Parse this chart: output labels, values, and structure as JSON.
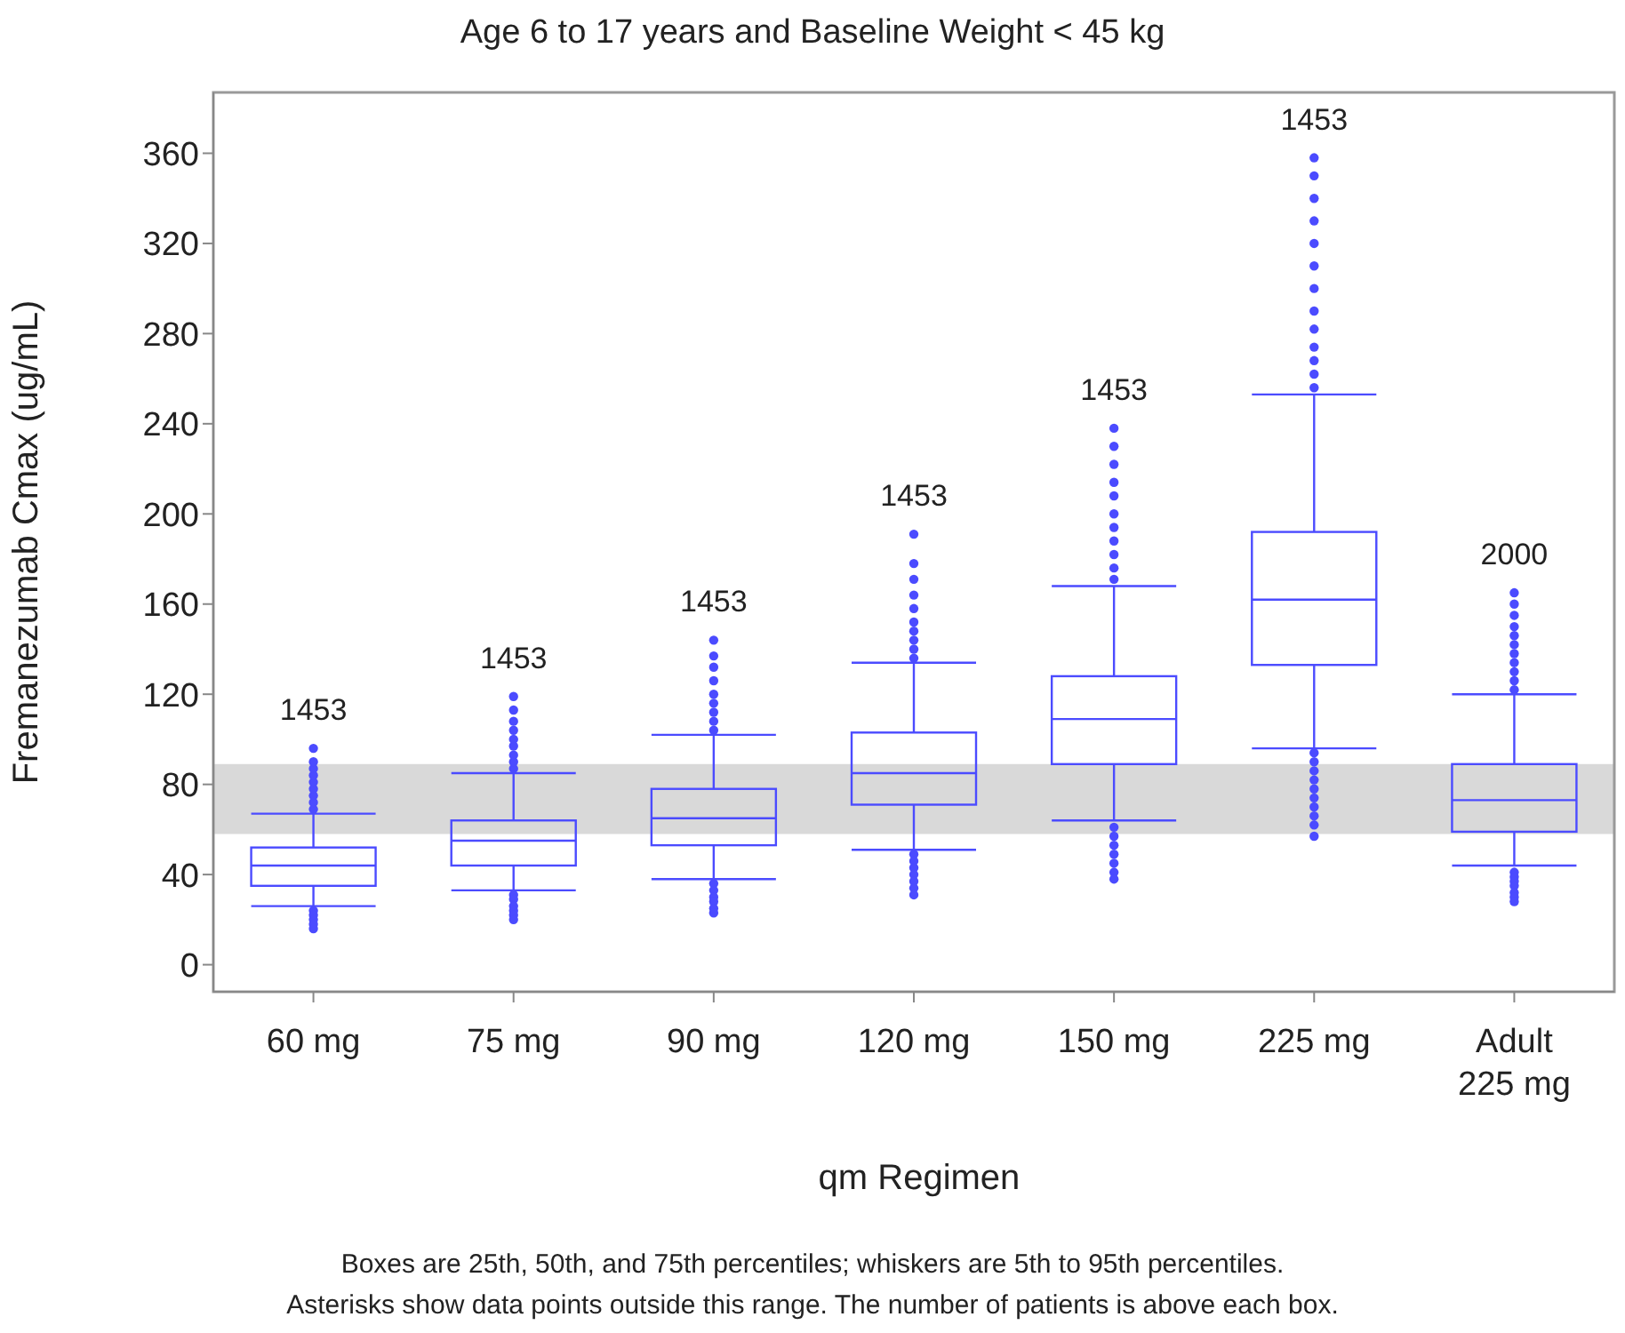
{
  "chart_data": {
    "type": "box",
    "title": "Age 6 to 17 years and Baseline Weight < 45 kg",
    "xlabel": "qm Regimen",
    "ylabel": "Fremanezumab Cmax (ug/mL)",
    "categories": [
      "60 mg",
      "75 mg",
      "90 mg",
      "120 mg",
      "150 mg",
      "225 mg",
      "Adult 225 mg"
    ],
    "series": [
      {
        "color": "#4b4bff",
        "boxes": [
          {
            "low": 26,
            "q1": 35,
            "median": 44,
            "q3": 52,
            "high": 67,
            "outliers": [
              69,
              72,
              75,
              78,
              81,
              84,
              87,
              90,
              96,
              24,
              22,
              20,
              18,
              16
            ]
          },
          {
            "low": 33,
            "q1": 44,
            "median": 55,
            "q3": 64,
            "high": 85,
            "outliers": [
              87,
              90,
              93,
              97,
              100,
              104,
              108,
              113,
              119,
              31,
              29,
              26,
              24,
              22,
              20
            ]
          },
          {
            "low": 38,
            "q1": 53,
            "median": 65,
            "q3": 78,
            "high": 102,
            "outliers": [
              104,
              108,
              112,
              116,
              120,
              126,
              132,
              137,
              144,
              36,
              33,
              30,
              28,
              25,
              23
            ]
          },
          {
            "low": 51,
            "q1": 71,
            "median": 85,
            "q3": 103,
            "high": 134,
            "outliers": [
              136,
              140,
              144,
              148,
              152,
              158,
              164,
              171,
              178,
              191,
              49,
              46,
              43,
              40,
              37,
              34,
              31
            ]
          },
          {
            "low": 64,
            "q1": 89,
            "median": 109,
            "q3": 128,
            "high": 168,
            "outliers": [
              171,
              176,
              182,
              188,
              194,
              200,
              208,
              214,
              222,
              230,
              238,
              61,
              57,
              53,
              49,
              45,
              41,
              38
            ]
          },
          {
            "low": 96,
            "q1": 133,
            "median": 162,
            "q3": 192,
            "high": 253,
            "outliers": [
              256,
              262,
              268,
              274,
              282,
              290,
              300,
              310,
              320,
              330,
              340,
              350,
              358,
              94,
              90,
              86,
              82,
              78,
              74,
              70,
              66,
              62,
              57
            ]
          },
          {
            "low": 44,
            "q1": 59,
            "median": 73,
            "q3": 89,
            "high": 120,
            "outliers": [
              122,
              126,
              130,
              134,
              138,
              142,
              146,
              150,
              155,
              160,
              165,
              41,
              39,
              37,
              35,
              32,
              30,
              28
            ]
          }
        ]
      }
    ],
    "ylim": [
      -12,
      387
    ],
    "yticks": [
      0,
      40,
      80,
      120,
      160,
      200,
      240,
      280,
      320,
      360
    ],
    "grid": false,
    "bands": [
      {
        "axis": "y",
        "from": 58,
        "to": 89,
        "color": "#d9d9d9"
      }
    ],
    "annotations": [
      "1453",
      "1453",
      "1453",
      "1453",
      "1453",
      "1453",
      "2000",
      "Boxes are 25th, 50th, and 75th percentiles; whiskers are 5th to 95th percentiles.",
      "Asterisks show data points outside this range. The number of patients is above each box."
    ]
  }
}
